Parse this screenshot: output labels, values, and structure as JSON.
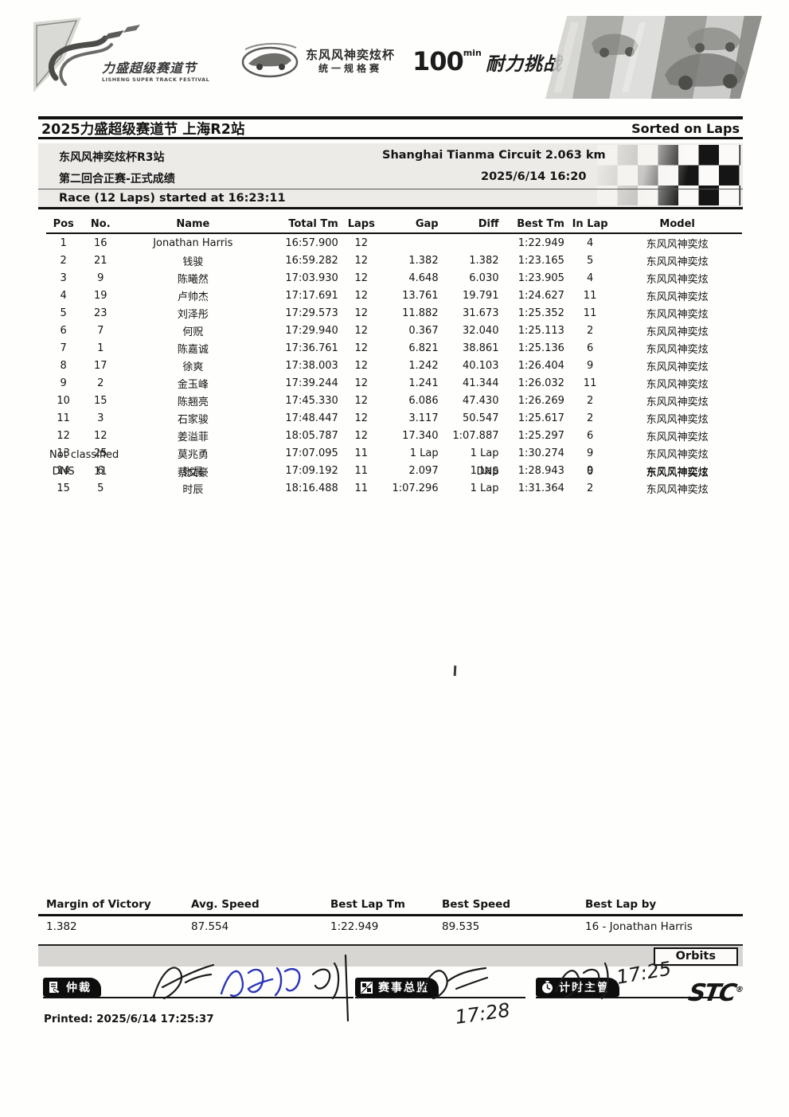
{
  "page": {
    "title": "2025力盛超级赛道节 上海R2站",
    "sorted_on": "Sorted on Laps"
  },
  "banner": {
    "lisheng": {
      "name_cn": "力盛超级赛道节",
      "name_en": "LISHENG SUPER TRACK FESTIVAL"
    },
    "aeolus": {
      "line1": "东风风神奕炫杯",
      "line2": "统一规格赛"
    },
    "endurance": {
      "number": "100",
      "unit": "min",
      "text": "耐力挑战"
    }
  },
  "event": {
    "series": "东风风神奕炫杯R3站",
    "session": "第二回合正赛-正式成绩",
    "circuit": "Shanghai Tianma Circuit 2.063 km",
    "datetime": "2025/6/14 16:20",
    "race_info": "Race (12 Laps) started at 16:23:11"
  },
  "results": {
    "columns": [
      "Pos",
      "No.",
      "Name",
      "Total Tm",
      "Laps",
      "Gap",
      "Diff",
      "Best Tm",
      "In Lap",
      "Model"
    ],
    "rows": [
      [
        "1",
        "16",
        "Jonathan Harris",
        "16:57.900",
        "12",
        "",
        "",
        "1:22.949",
        "4",
        "东风风神奕炫"
      ],
      [
        "2",
        "21",
        "钱骏",
        "16:59.282",
        "12",
        "1.382",
        "1.382",
        "1:23.165",
        "5",
        "东风风神奕炫"
      ],
      [
        "3",
        "9",
        "陈曦然",
        "17:03.930",
        "12",
        "4.648",
        "6.030",
        "1:23.905",
        "4",
        "东风风神奕炫"
      ],
      [
        "4",
        "19",
        "卢帅杰",
        "17:17.691",
        "12",
        "13.761",
        "19.791",
        "1:24.627",
        "11",
        "东风风神奕炫"
      ],
      [
        "5",
        "23",
        "刘泽彤",
        "17:29.573",
        "12",
        "11.882",
        "31.673",
        "1:25.352",
        "11",
        "东风风神奕炫"
      ],
      [
        "6",
        "7",
        "何贶",
        "17:29.940",
        "12",
        "0.367",
        "32.040",
        "1:25.113",
        "2",
        "东风风神奕炫"
      ],
      [
        "7",
        "1",
        "陈嘉诚",
        "17:36.761",
        "12",
        "6.821",
        "38.861",
        "1:25.136",
        "6",
        "东风风神奕炫"
      ],
      [
        "8",
        "17",
        "徐爽",
        "17:38.003",
        "12",
        "1.242",
        "40.103",
        "1:26.404",
        "9",
        "东风风神奕炫"
      ],
      [
        "9",
        "2",
        "金玉峰",
        "17:39.244",
        "12",
        "1.241",
        "41.344",
        "1:26.032",
        "11",
        "东风风神奕炫"
      ],
      [
        "10",
        "15",
        "陈翘亮",
        "17:45.330",
        "12",
        "6.086",
        "47.430",
        "1:26.269",
        "2",
        "东风风神奕炫"
      ],
      [
        "11",
        "3",
        "石家骏",
        "17:48.447",
        "12",
        "3.117",
        "50.547",
        "1:25.617",
        "2",
        "东风风神奕炫"
      ],
      [
        "12",
        "12",
        "姜溢菲",
        "18:05.787",
        "12",
        "17.340",
        "1:07.887",
        "1:25.297",
        "6",
        "东风风神奕炫"
      ],
      [
        "13",
        "25",
        "莫兆勇",
        "17:07.095",
        "11",
        "1 Lap",
        "1 Lap",
        "1:30.274",
        "9",
        "东风风神奕炫"
      ],
      [
        "14",
        "6",
        "张晨",
        "17:09.192",
        "11",
        "2.097",
        "1 Lap",
        "1:28.943",
        "9",
        "东风风神奕炫"
      ],
      [
        "15",
        "5",
        "时辰",
        "18:16.488",
        "11",
        "1:07.296",
        "1 Lap",
        "1:31.364",
        "2",
        "东风风神奕炫"
      ]
    ],
    "not_classified_label": "Not classified",
    "not_classified_rows": [
      [
        "DNS",
        "11",
        "蔡文豪",
        "",
        "",
        "",
        "DNS",
        "",
        "0",
        "东风风神奕炫"
      ]
    ]
  },
  "summary": {
    "columns": [
      "Margin of Victory",
      "Avg. Speed",
      "Best Lap Tm",
      "Best Speed",
      "Best Lap by"
    ],
    "values": [
      "1.382",
      "87.554",
      "1:22.949",
      "89.535",
      "16 - Jonathan Harris"
    ]
  },
  "footer": {
    "orbits": "Orbits",
    "signoff": [
      {
        "label": "仲裁",
        "icon": "arbitrator-icon"
      },
      {
        "label": "赛事总监",
        "icon": "race-director-icon"
      },
      {
        "label": "计时主管",
        "icon": "timekeeper-icon"
      }
    ],
    "handwritten_1": "17:28",
    "handwritten_2": "17:25",
    "stc": "STC",
    "stc_reg": "®",
    "printed": "Printed: 2025/6/14 17:25:37"
  }
}
